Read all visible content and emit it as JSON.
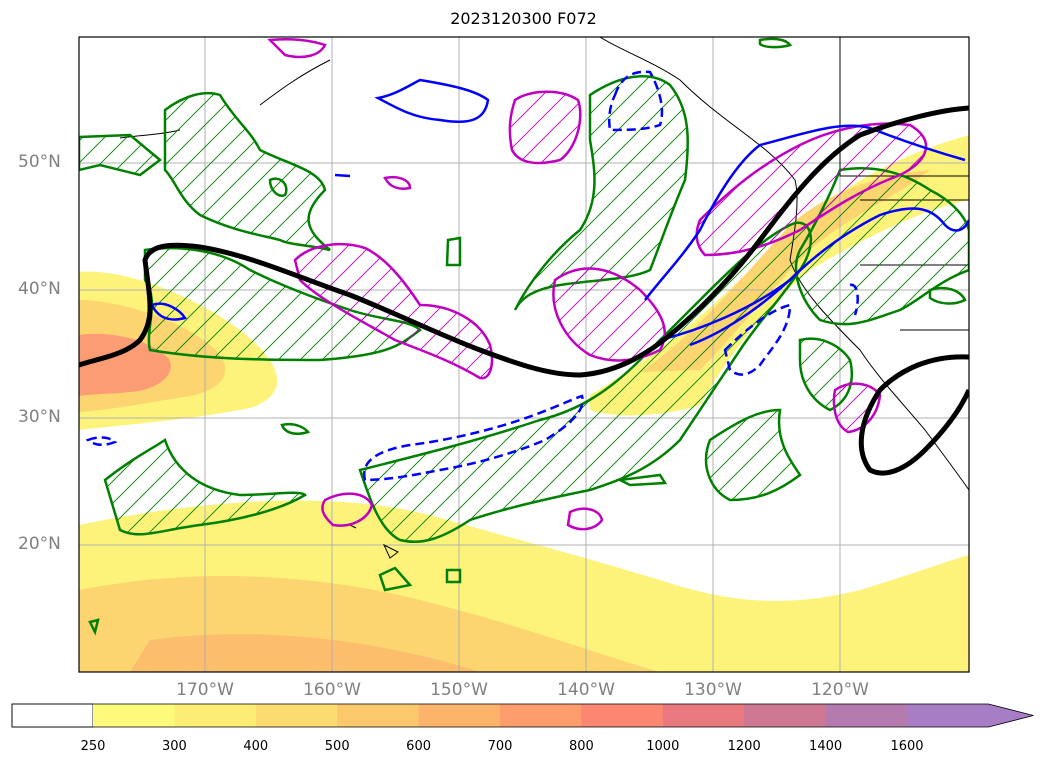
{
  "title": "2023120300 F072",
  "lat_labels": [
    "50°N",
    "40°N",
    "30°N",
    "20°N"
  ],
  "lon_labels": [
    "170°W",
    "160°W",
    "150°W",
    "140°W",
    "130°W",
    "120°W"
  ],
  "colorbar": {
    "ticks": [
      "250",
      "300",
      "400",
      "500",
      "600",
      "700",
      "800",
      "1000",
      "1200",
      "1400",
      "1600"
    ],
    "colors": [
      "#fefb7c",
      "#fded75",
      "#fcdc70",
      "#fcc86c",
      "#fcb36a",
      "#fc9d6b",
      "#fb8773",
      "#e9797f",
      "#cf7893",
      "#b57aad",
      "#a77dc6"
    ]
  },
  "colors": {
    "fill_light": "#fef37a",
    "fill_mid": "#fcd470",
    "fill_dark": "#fb9c74",
    "green_contour": "#008000",
    "blue_contour": "#0000ff",
    "magenta_contour": "#c000c0",
    "black_contour": "#000000"
  }
}
